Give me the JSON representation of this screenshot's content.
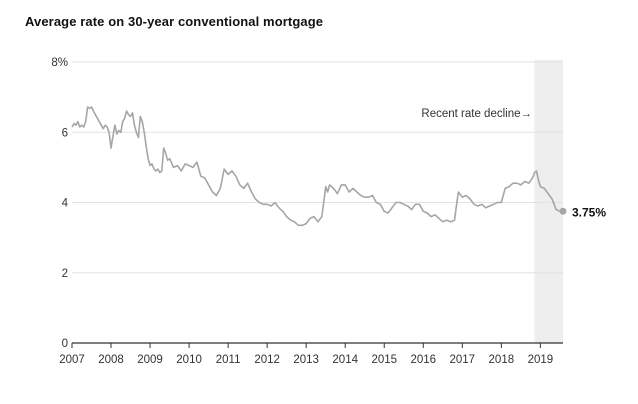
{
  "chart_data": {
    "type": "line",
    "title": "Average rate on 30-year conventional mortgage",
    "xlabel": "",
    "ylabel": "",
    "xlim": [
      2007.0,
      2019.58
    ],
    "ylim": [
      0,
      8
    ],
    "y_ticks": [
      {
        "value": 0,
        "label": "0"
      },
      {
        "value": 2,
        "label": "2"
      },
      {
        "value": 4,
        "label": "4"
      },
      {
        "value": 6,
        "label": "6"
      },
      {
        "value": 8,
        "label": "8%"
      }
    ],
    "x_ticks": [
      {
        "value": 2007,
        "label": "2007"
      },
      {
        "value": 2008,
        "label": "2008"
      },
      {
        "value": 2009,
        "label": "2009"
      },
      {
        "value": 2010,
        "label": "2010"
      },
      {
        "value": 2011,
        "label": "2011"
      },
      {
        "value": 2012,
        "label": "2012"
      },
      {
        "value": 2013,
        "label": "2013"
      },
      {
        "value": 2014,
        "label": "2014"
      },
      {
        "value": 2015,
        "label": "2015"
      },
      {
        "value": 2016,
        "label": "2016"
      },
      {
        "value": 2017,
        "label": "2017"
      },
      {
        "value": 2018,
        "label": "2018"
      },
      {
        "value": 2019,
        "label": "2019"
      }
    ],
    "grid": true,
    "highlight": {
      "x_start": 2018.85,
      "x_end": 2019.58,
      "color": "#eeeeee"
    },
    "annotation": {
      "text": "Recent rate decline→"
    },
    "end_label": "3.75%",
    "line_color": "#a8a5a3",
    "series": [
      {
        "x": [
          2007.0,
          2007.05,
          2007.1,
          2007.15,
          2007.2,
          2007.25,
          2007.3,
          2007.35,
          2007.4,
          2007.45,
          2007.5,
          2007.55,
          2007.6,
          2007.65,
          2007.7,
          2007.75,
          2007.8,
          2007.85,
          2007.9,
          2007.95,
          2008.0,
          2008.05,
          2008.1,
          2008.15,
          2008.2,
          2008.25,
          2008.3,
          2008.35,
          2008.4,
          2008.45,
          2008.5,
          2008.55,
          2008.6,
          2008.65,
          2008.7,
          2008.75,
          2008.8,
          2008.85,
          2008.9,
          2008.95,
          2009.0,
          2009.05,
          2009.1,
          2009.15,
          2009.2,
          2009.25,
          2009.3,
          2009.35,
          2009.4,
          2009.45,
          2009.5,
          2009.6,
          2009.7,
          2009.8,
          2009.9,
          2010.0,
          2010.1,
          2010.2,
          2010.3,
          2010.4,
          2010.5,
          2010.6,
          2010.7,
          2010.8,
          2010.9,
          2011.0,
          2011.1,
          2011.2,
          2011.3,
          2011.4,
          2011.5,
          2011.6,
          2011.7,
          2011.8,
          2011.9,
          2012.0,
          2012.1,
          2012.2,
          2012.3,
          2012.4,
          2012.5,
          2012.6,
          2012.7,
          2012.8,
          2012.9,
          2013.0,
          2013.1,
          2013.2,
          2013.3,
          2013.4,
          2013.45,
          2013.5,
          2013.55,
          2013.6,
          2013.7,
          2013.8,
          2013.9,
          2014.0,
          2014.1,
          2014.2,
          2014.3,
          2014.4,
          2014.5,
          2014.6,
          2014.7,
          2014.8,
          2014.9,
          2015.0,
          2015.1,
          2015.2,
          2015.3,
          2015.4,
          2015.5,
          2015.6,
          2015.7,
          2015.8,
          2015.9,
          2016.0,
          2016.1,
          2016.2,
          2016.3,
          2016.4,
          2016.5,
          2016.6,
          2016.7,
          2016.8,
          2016.85,
          2016.9,
          2017.0,
          2017.1,
          2017.2,
          2017.3,
          2017.4,
          2017.5,
          2017.6,
          2017.7,
          2017.8,
          2017.9,
          2018.0,
          2018.1,
          2018.2,
          2018.3,
          2018.4,
          2018.5,
          2018.6,
          2018.7,
          2018.8,
          2018.85,
          2018.9,
          2018.95,
          2019.0,
          2019.1,
          2019.2,
          2019.3,
          2019.4,
          2019.5,
          2019.58
        ],
        "values": [
          6.15,
          6.25,
          6.2,
          6.3,
          6.15,
          6.2,
          6.15,
          6.3,
          6.72,
          6.68,
          6.72,
          6.6,
          6.5,
          6.4,
          6.3,
          6.2,
          6.1,
          6.2,
          6.15,
          6.0,
          5.55,
          5.9,
          6.2,
          5.95,
          6.05,
          6.0,
          6.3,
          6.4,
          6.6,
          6.5,
          6.45,
          6.55,
          6.2,
          6.0,
          5.85,
          6.45,
          6.3,
          6.0,
          5.6,
          5.25,
          5.05,
          5.1,
          4.95,
          4.9,
          4.95,
          4.85,
          4.9,
          5.55,
          5.4,
          5.2,
          5.25,
          5.0,
          5.05,
          4.9,
          5.1,
          5.05,
          5.0,
          5.15,
          4.75,
          4.7,
          4.5,
          4.3,
          4.2,
          4.4,
          4.95,
          4.8,
          4.9,
          4.75,
          4.5,
          4.4,
          4.55,
          4.3,
          4.1,
          4.0,
          3.95,
          3.95,
          3.9,
          4.0,
          3.85,
          3.75,
          3.6,
          3.5,
          3.45,
          3.35,
          3.35,
          3.4,
          3.55,
          3.6,
          3.45,
          3.6,
          4.0,
          4.45,
          4.3,
          4.5,
          4.4,
          4.25,
          4.5,
          4.5,
          4.3,
          4.4,
          4.3,
          4.2,
          4.15,
          4.15,
          4.2,
          4.0,
          3.95,
          3.75,
          3.7,
          3.85,
          4.0,
          4.0,
          3.95,
          3.9,
          3.8,
          3.95,
          3.95,
          3.75,
          3.7,
          3.6,
          3.65,
          3.55,
          3.45,
          3.5,
          3.45,
          3.5,
          3.9,
          4.3,
          4.15,
          4.2,
          4.1,
          3.95,
          3.9,
          3.95,
          3.85,
          3.9,
          3.95,
          4.0,
          4.0,
          4.4,
          4.45,
          4.55,
          4.55,
          4.5,
          4.6,
          4.55,
          4.7,
          4.85,
          4.9,
          4.65,
          4.45,
          4.4,
          4.25,
          4.1,
          3.8,
          3.75,
          3.75
        ]
      }
    ]
  }
}
